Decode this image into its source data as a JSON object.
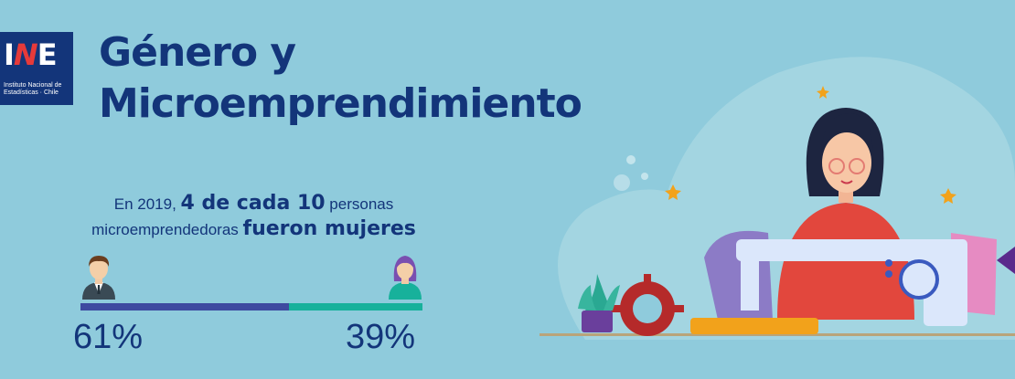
{
  "logo": {
    "mark_prefix": "I",
    "mark_n": "N",
    "mark_suffix": "E",
    "caption": "Instituto Nacional de Estadísticas · Chile"
  },
  "title": {
    "line1": "Género y",
    "line2": "Microemprendimiento"
  },
  "stat": {
    "line1_pre": "En 2019, ",
    "line1_bold": "4 de cada 10",
    "line1_post": " personas",
    "line2_pre": "microemprendedoras ",
    "line2_bold": "fueron mujeres"
  },
  "split": {
    "men_percent_label": "61%",
    "women_percent_label": "39%",
    "men_value": 61,
    "women_value": 39
  },
  "colors": {
    "background": "#8fcbdc",
    "navy": "#13357a",
    "men_bar": "#3e4aa0",
    "women_bar": "#17b19b"
  },
  "icons": {
    "man": "man-icon",
    "woman": "woman-icon"
  }
}
